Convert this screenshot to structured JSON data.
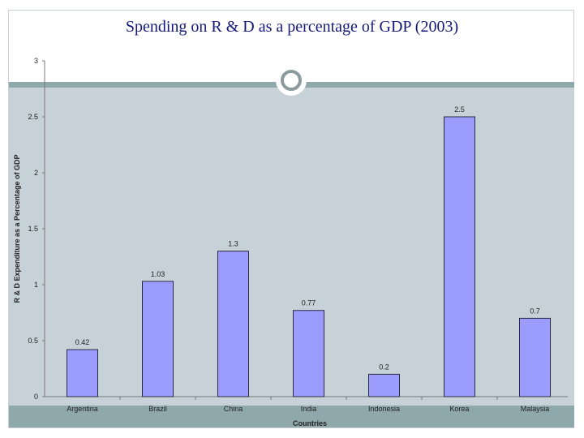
{
  "slide": {
    "title": "Spending on R & D as a percentage of GDP (2003)"
  },
  "colors": {
    "bar_fill": "#9c9cff",
    "bar_stroke": "#2a2a40",
    "plot_bg": "#c7d1d8",
    "band": "#8fa8ac",
    "title": "#14197a"
  },
  "chart_data": {
    "type": "bar",
    "title": "Spending on R & D as a percentage of GDP (2003)",
    "categories": [
      "Argentina",
      "Brazil",
      "China",
      "India",
      "Indonesia",
      "Korea",
      "Malaysia"
    ],
    "values": [
      0.42,
      1.03,
      1.3,
      0.77,
      0.2,
      2.5,
      0.7
    ],
    "data_labels": [
      "0.42",
      "1.03",
      "1.3",
      "0.77",
      "0.2",
      "2.5",
      "0.7"
    ],
    "xlabel": "Countries",
    "ylabel": "R & D Expenditure as a Percentage of GDP",
    "ylim": [
      0,
      3
    ],
    "yticks": [
      "0",
      "0.5",
      "1",
      "1.5",
      "2",
      "2.5",
      "3"
    ],
    "legend": "none",
    "grid": false
  }
}
